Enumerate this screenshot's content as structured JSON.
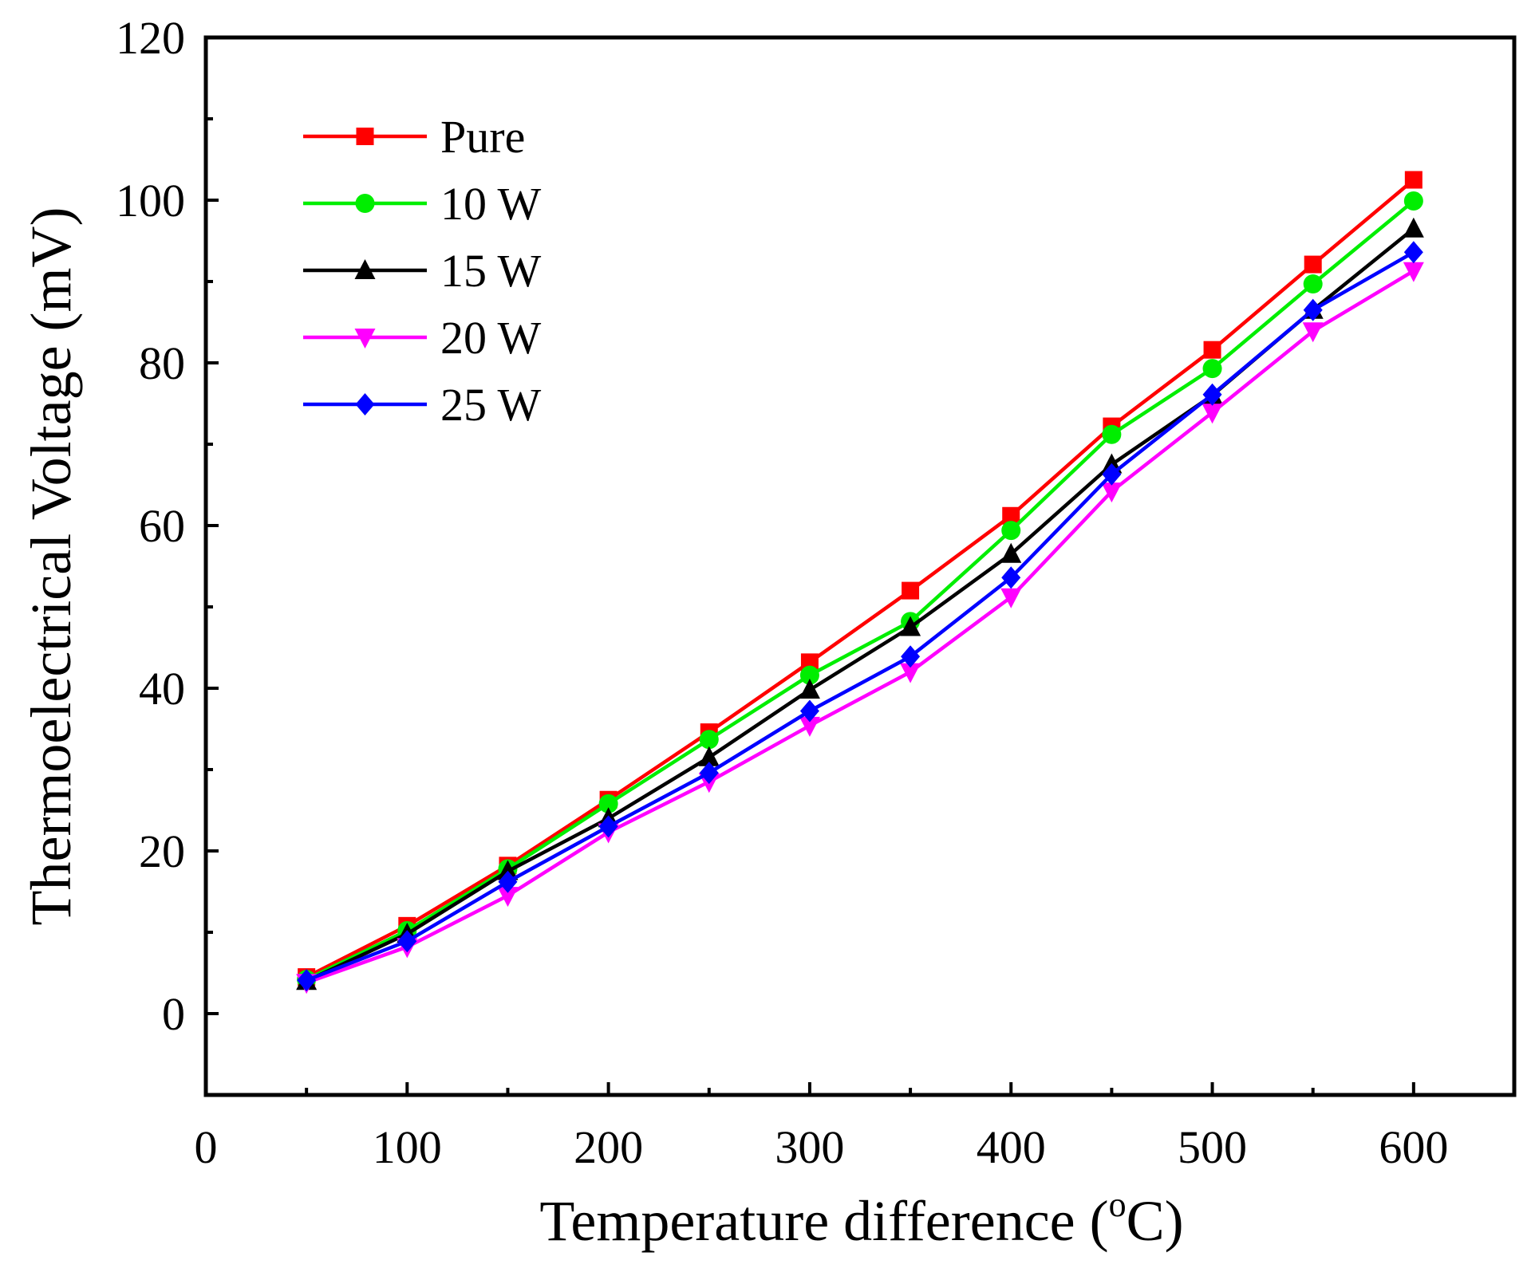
{
  "chart_data": {
    "type": "line",
    "title": "",
    "xlabel": "Temperature difference (",
    "xlabel_unit_sup": "o",
    "xlabel_unit": "C)",
    "ylabel": "Thermoelectrical Voltage (mV)",
    "xlim": [
      0,
      650
    ],
    "ylim": [
      -10,
      120
    ],
    "xticks": [
      0,
      100,
      200,
      300,
      400,
      500,
      600
    ],
    "yticks": [
      0,
      20,
      40,
      60,
      80,
      100,
      120
    ],
    "xtick_labels": [
      "0",
      "100",
      "200",
      "300",
      "400",
      "500",
      "600"
    ],
    "ytick_labels": [
      "0",
      "20",
      "40",
      "60",
      "80",
      "100",
      "120"
    ],
    "grid": false,
    "legend_position": "top-left",
    "x": [
      50,
      100,
      150,
      200,
      250,
      300,
      350,
      400,
      450,
      500,
      550,
      600
    ],
    "series": [
      {
        "name": "Pure",
        "color": "#ff0000",
        "marker": "square",
        "values": [
          4.5,
          10.8,
          18.2,
          26.3,
          34.6,
          43.2,
          52.0,
          61.2,
          72.2,
          81.6,
          92.1,
          102.5
        ]
      },
      {
        "name": "10 W",
        "color": "#00ee00",
        "marker": "circle",
        "values": [
          4.2,
          10.2,
          17.8,
          25.8,
          33.7,
          41.6,
          48.2,
          59.4,
          71.2,
          79.3,
          89.7,
          99.9
        ]
      },
      {
        "name": "15 W",
        "color": "#000000",
        "marker": "triangle-up",
        "values": [
          4.0,
          9.8,
          17.5,
          24.0,
          31.5,
          39.8,
          47.5,
          56.5,
          67.5,
          76.0,
          86.5,
          96.5
        ]
      },
      {
        "name": "20 W",
        "color": "#ff00ff",
        "marker": "triangle-down",
        "values": [
          3.8,
          8.2,
          14.5,
          22.3,
          28.5,
          35.4,
          42.0,
          51.2,
          64.2,
          73.9,
          83.9,
          91.3
        ]
      },
      {
        "name": "25 W",
        "color": "#0000ff",
        "marker": "diamond",
        "values": [
          4.1,
          8.9,
          16.2,
          23.0,
          29.6,
          37.2,
          43.9,
          53.6,
          66.3,
          76.1,
          86.5,
          93.6
        ]
      }
    ]
  }
}
